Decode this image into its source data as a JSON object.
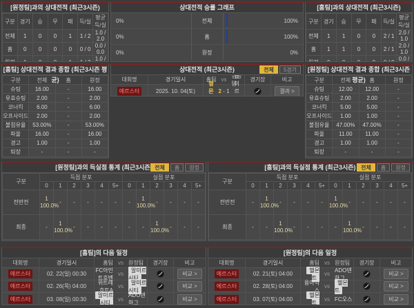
{
  "colors": {
    "accent_red": "#7d2321",
    "bar_blue": "#2f5bd8",
    "highlight_yellow": "#e9c23f",
    "badge_red": "#6d1414"
  },
  "vs_away_record": {
    "title": "[원정팀]과의 상대전적 (최근3시즌)",
    "headers": [
      "구분",
      "경기",
      "승",
      "무",
      "패",
      "득/실",
      "평균 득/실"
    ],
    "rows": [
      {
        "label": "전체",
        "games": "1",
        "win": "0",
        "draw": "0",
        "lose": "1",
        "gd": "1 / 2",
        "avg": "1.0 / 2.0"
      },
      {
        "label": "홈",
        "games": "0",
        "win": "0",
        "draw": "0",
        "lose": "0",
        "gd": "0 / 0",
        "avg": "0.0 / 0.0"
      },
      {
        "label": "원정",
        "games": "1",
        "win": "0",
        "draw": "0",
        "lose": "1",
        "gd": "1 / 2",
        "avg": "1.0 / 2.0"
      }
    ]
  },
  "winrate_graph": {
    "title": "상대전적 승률 그래프",
    "rows": [
      {
        "label": "전체",
        "left_pct": "0%",
        "left_val": 0,
        "right_pct": "100%",
        "right_val": 100
      },
      {
        "label": "홈",
        "left_pct": "0%",
        "left_val": 0,
        "right_pct": "100%",
        "right_val": 100
      },
      {
        "label": "원정",
        "left_pct": "0%",
        "left_val": 0,
        "right_pct": "0%",
        "right_val": 0
      }
    ]
  },
  "vs_home_record": {
    "title": "[홈팀]과의 상대전적 (최근3시즌)",
    "headers": [
      "구분",
      "경기",
      "승",
      "무",
      "패",
      "득/실",
      "평균 득/실"
    ],
    "rows": [
      {
        "label": "전체",
        "games": "1",
        "win": "1",
        "draw": "0",
        "lose": "0",
        "gd": "2 / 1",
        "avg": "2.0 / 1.0"
      },
      {
        "label": "홈",
        "games": "1",
        "win": "1",
        "draw": "0",
        "lose": "0",
        "gd": "2 / 1",
        "avg": "2.0 / 1.0"
      },
      {
        "label": "원정",
        "games": "0",
        "win": "0",
        "draw": "0",
        "lose": "0",
        "gd": "0 / 0",
        "avg": "0.0 / 0.0"
      }
    ]
  },
  "home_summary": {
    "title": "[홈팀] 상대전적 결과 종합 (최근3시즌 평균)",
    "headers": [
      "구분",
      "전체",
      "홈",
      "원정"
    ],
    "rows": [
      {
        "label": "슈팅",
        "all": "16.00",
        "home": "-",
        "away": "16.00"
      },
      {
        "label": "유효슈팅",
        "all": "2.00",
        "home": "-",
        "away": "2.00"
      },
      {
        "label": "코너킥",
        "all": "6.00",
        "home": "-",
        "away": "6.00"
      },
      {
        "label": "오프사이드",
        "all": "2.00",
        "home": "-",
        "away": "2.00"
      },
      {
        "label": "볼점유율",
        "all": "53.00%",
        "home": "-",
        "away": "53.00%"
      },
      {
        "label": "파울",
        "all": "16.00",
        "home": "-",
        "away": "16.00"
      },
      {
        "label": "경고",
        "all": "1.00",
        "home": "-",
        "away": "1.00"
      },
      {
        "label": "퇴장",
        "all": "-",
        "home": "-",
        "away": "-"
      }
    ]
  },
  "h2h_recent": {
    "title": "상대전적 (최근3시즌)",
    "tabs": [
      "전체",
      "5경기"
    ],
    "active_tab": "전체",
    "headers": {
      "league": "대회명",
      "datetime": "경기일시",
      "home": "홈팀",
      "vs": "vs",
      "away": "원정팀",
      "stadium": "경기장",
      "note": "비고"
    },
    "match": {
      "league": "에르스터",
      "datetime": "2025. 10. 04(토)",
      "home": "헬몬트",
      "score_home": "2",
      "dash": "-",
      "score_away": "1",
      "away": "알미르시티",
      "result_button": "결과 >"
    }
  },
  "away_summary": {
    "title": "[원정팀] 상대전적 결과 종합 (최근3시즌 평균)",
    "headers": [
      "구분",
      "전체",
      "홈",
      "원정"
    ],
    "rows": [
      {
        "label": "슈팅",
        "all": "12.00",
        "home": "12.00",
        "away": "-"
      },
      {
        "label": "유효슈팅",
        "all": "2.00",
        "home": "2.00",
        "away": "-"
      },
      {
        "label": "코너킥",
        "all": "5.00",
        "home": "5.00",
        "away": "-"
      },
      {
        "label": "오프사이드",
        "all": "1.00",
        "home": "1.00",
        "away": "-"
      },
      {
        "label": "볼점유율",
        "all": "47.00%",
        "home": "47.00%",
        "away": "-"
      },
      {
        "label": "파울",
        "all": "11.00",
        "home": "11.00",
        "away": "-"
      },
      {
        "label": "경고",
        "all": "1.00",
        "home": "1.00",
        "away": "-"
      },
      {
        "label": "퇴장",
        "all": "-",
        "home": "-",
        "away": "-"
      }
    ]
  },
  "vs_away_goals": {
    "title": "[원정팀]과의 득실점 통계 (최근3시즌)",
    "tabs": [
      "전체",
      "홈",
      "원정"
    ],
    "active_tab": "전체",
    "label_header": "구분",
    "group_headers": [
      "득점 분포",
      "실점 분포"
    ],
    "cols": [
      "0",
      "1",
      "2",
      "3",
      "4",
      "5+"
    ],
    "rows": [
      {
        "label": "전반전",
        "g0": "1\n100.0%",
        "g1": "-",
        "g2": "-",
        "g3": "-",
        "g4": "-",
        "g5": "-",
        "c0": "-",
        "c1": "1\n100.0%",
        "c2": "-",
        "c3": "-",
        "c4": "-",
        "c5": "-"
      },
      {
        "label": "최종",
        "g0": "-",
        "g1": "1\n100.0%",
        "g2": "-",
        "g3": "-",
        "g4": "-",
        "g5": "-",
        "c0": "-",
        "c1": "-",
        "c2": "1\n100.0%",
        "c3": "-",
        "c4": "-",
        "c5": "-"
      }
    ]
  },
  "vs_home_goals": {
    "title": "[홈팀]과의 득실점 통계 (최근3시즌)",
    "tabs": [
      "전체",
      "홈",
      "원정"
    ],
    "active_tab": "전체",
    "label_header": "구분",
    "group_headers": [
      "득점 분포",
      "실점 분포"
    ],
    "cols": [
      "0",
      "1",
      "2",
      "3",
      "4",
      "5+"
    ],
    "rows": [
      {
        "label": "전반전",
        "g0": "-",
        "g1": "1\n100.0%",
        "g2": "-",
        "g3": "-",
        "g4": "-",
        "g5": "-",
        "c0": "1\n100.0%",
        "c1": "-",
        "c2": "-",
        "c3": "-",
        "c4": "-",
        "c5": "-"
      },
      {
        "label": "최종",
        "g0": "-",
        "g1": "-",
        "g2": "1\n100.0%",
        "g3": "-",
        "g4": "-",
        "g5": "-",
        "c0": "-",
        "c1": "1\n100.0%",
        "c2": "-",
        "c3": "-",
        "c4": "-",
        "c5": "-"
      }
    ]
  },
  "home_schedule": {
    "title": "[홈팀]의 다음 일정",
    "headers": {
      "league": "대회명",
      "datetime": "경기일시",
      "home": "홈팀",
      "vs": "vs",
      "away": "원정팀",
      "stadium": "경기장",
      "note": "비고"
    },
    "rows": [
      {
        "league": "에르스터",
        "datetime": "02. 22(일) 00:30",
        "home": "FC아인트호벤",
        "away": "알미르시티",
        "home_boxed": false,
        "away_boxed": true,
        "note_button": "비교 >"
      },
      {
        "league": "에르스터",
        "datetime": "02. 26(목) 04:00",
        "home": "위트레흐트A",
        "away": "알미르시티",
        "home_boxed": false,
        "away_boxed": true,
        "note_button": "비교 >"
      },
      {
        "league": "에르스터",
        "datetime": "03. 08(일) 00:30",
        "home": "알미르시티",
        "away": "ADO덴하그",
        "home_boxed": true,
        "away_boxed": false,
        "note_button": "비교 >"
      }
    ]
  },
  "away_schedule": {
    "title": "[원정팀]의 다음 일정",
    "headers": {
      "league": "대회명",
      "datetime": "경기일시",
      "home": "홈팀",
      "vs": "vs",
      "away": "원정팀",
      "stadium": "경기장",
      "note": "비고"
    },
    "rows": [
      {
        "league": "에르스터",
        "datetime": "02. 21(토) 04:00",
        "home": "헬몬트",
        "away": "ADO덴하그",
        "home_boxed": true,
        "away_boxed": false,
        "note_button": "비교 >"
      },
      {
        "league": "에르스터",
        "datetime": "02. 28(토) 04:00",
        "home": "용아약스",
        "away": "헬몬트",
        "home_boxed": false,
        "away_boxed": true,
        "note_button": "비교 >"
      },
      {
        "league": "에르스터",
        "datetime": "03. 07(토) 04:00",
        "home": "헬몬트",
        "away": "FC오스",
        "home_boxed": true,
        "away_boxed": false,
        "note_button": "비교 >"
      }
    ]
  }
}
